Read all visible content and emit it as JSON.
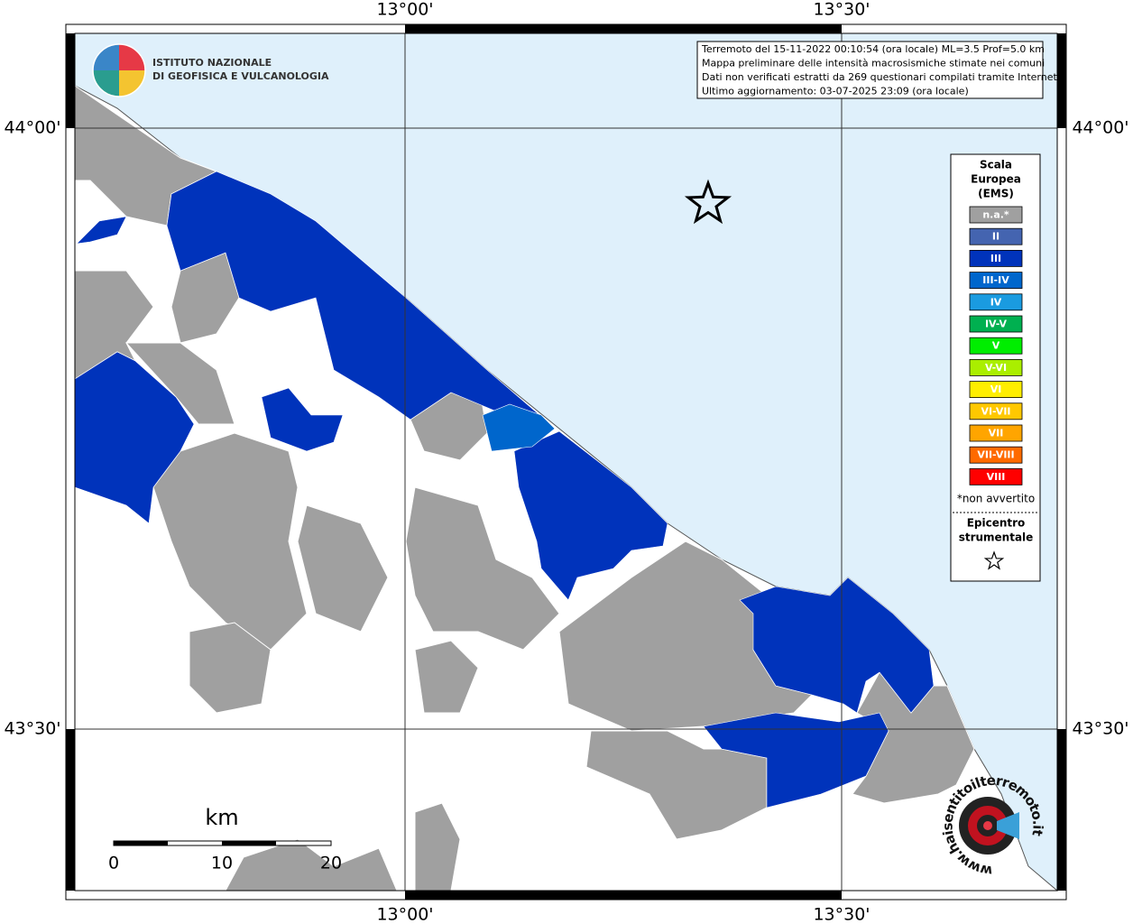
{
  "header": {
    "institute": [
      "ISTITUTO NAZIONALE",
      "DI GEOFISICA E VULCANOLOGIA"
    ]
  },
  "info_box": {
    "lines": [
      "Terremoto del 15-11-2022 00:10:54 (ora locale) ML=3.5 Prof=5.0 km",
      "Mappa preliminare delle intensità macrosismiche stimate nei comuni",
      "Dati non verificati estratti da 269 questionari compilati tramite Internet.",
      "Ultimo aggiornamento: 03-07-2025 23:09 (ora locale)"
    ]
  },
  "axes": {
    "top": [
      "13°00'",
      "13°30'"
    ],
    "bottom": [
      "13°00'",
      "13°30'"
    ],
    "left": [
      "44°00'",
      "43°30'"
    ],
    "right": [
      "44°00'",
      "43°30'"
    ]
  },
  "legend": {
    "title": [
      "Scala",
      "Europea",
      "(EMS)"
    ],
    "items": [
      {
        "label": "n.a.*",
        "color": "#a0a0a0"
      },
      {
        "label": "II",
        "color": "#4464b0"
      },
      {
        "label": "III",
        "color": "#0033bb"
      },
      {
        "label": "III-IV",
        "color": "#0066cc"
      },
      {
        "label": "IV",
        "color": "#1a9be0"
      },
      {
        "label": "IV-V",
        "color": "#00b050"
      },
      {
        "label": "V",
        "color": "#00ee00"
      },
      {
        "label": "V-VI",
        "color": "#aaee00"
      },
      {
        "label": "VI",
        "color": "#ffee00"
      },
      {
        "label": "VI-VII",
        "color": "#ffc800"
      },
      {
        "label": "VII",
        "color": "#ffa500"
      },
      {
        "label": "VII-VIII",
        "color": "#ff6a00"
      },
      {
        "label": "VIII",
        "color": "#ff0000"
      }
    ],
    "note": "*non avvertito",
    "epicenter_title": [
      "Epicentro",
      "strumentale"
    ]
  },
  "scale_bar": {
    "unit": "km",
    "labels": [
      "0",
      "10",
      "20"
    ]
  },
  "watermark": "www.haisentitoilterremoto.it"
}
